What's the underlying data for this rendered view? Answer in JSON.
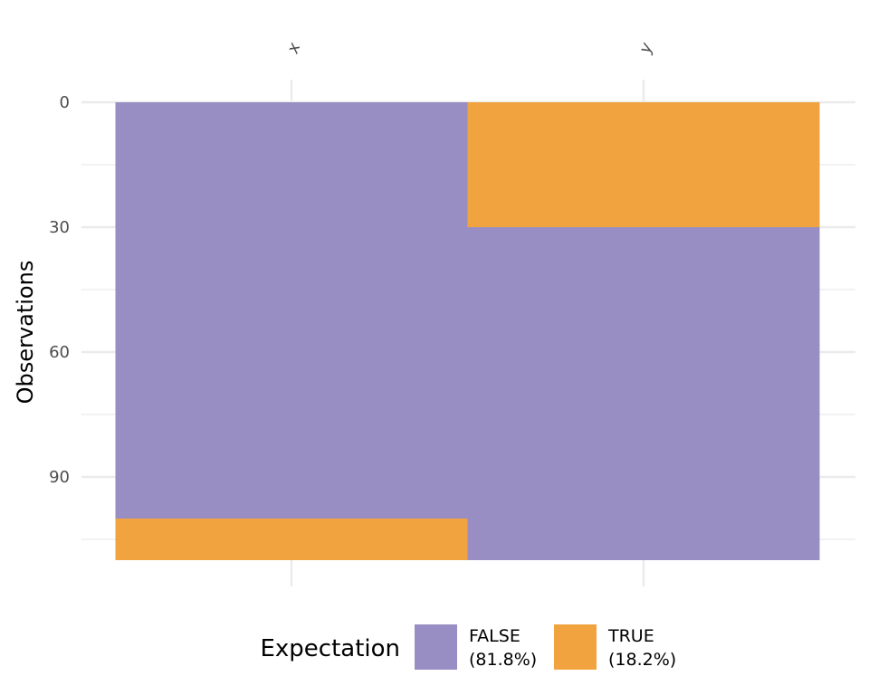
{
  "chart_data": {
    "type": "heatmap",
    "title": "",
    "xlabel": "",
    "ylabel": "Observations",
    "columns": [
      "x",
      "y"
    ],
    "n_observations": 110,
    "ylim": [
      0,
      110
    ],
    "y_reversed": true,
    "y_ticks": [
      0,
      30,
      60,
      90
    ],
    "grid": true,
    "segments": [
      {
        "column": "x",
        "start": 0,
        "end": 100,
        "value": "FALSE"
      },
      {
        "column": "x",
        "start": 100,
        "end": 110,
        "value": "TRUE"
      },
      {
        "column": "y",
        "start": 0,
        "end": 30,
        "value": "TRUE"
      },
      {
        "column": "y",
        "start": 30,
        "end": 110,
        "value": "FALSE"
      }
    ],
    "legend": {
      "title": "Expectation",
      "placement": "bottom",
      "entries": [
        {
          "value": "FALSE",
          "label_line1": "FALSE",
          "label_line2": "(81.8%)",
          "color": "#998ec3"
        },
        {
          "value": "TRUE",
          "label_line1": "TRUE",
          "label_line2": "(18.2%)",
          "color": "#f1a340"
        }
      ]
    }
  }
}
